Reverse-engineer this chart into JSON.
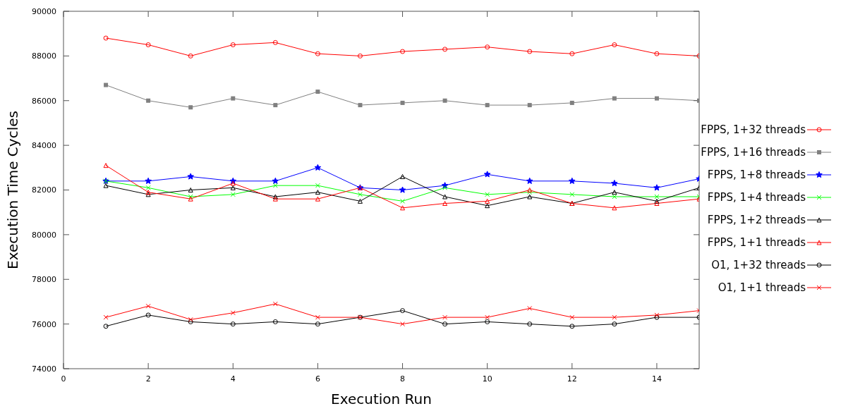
{
  "chart_data": {
    "type": "line",
    "xlabel": "Execution Run",
    "ylabel": "Execution Time Cycles",
    "x": [
      1,
      2,
      3,
      4,
      5,
      6,
      7,
      8,
      9,
      10,
      11,
      12,
      13,
      14,
      15
    ],
    "xlim": [
      0,
      15
    ],
    "xticks": [
      0,
      2,
      4,
      6,
      8,
      10,
      12,
      14
    ],
    "ylim": [
      74000,
      90000
    ],
    "yticks": [
      74000,
      76000,
      78000,
      80000,
      82000,
      84000,
      86000,
      88000,
      90000
    ],
    "grid": false,
    "legend": "right",
    "line_style": "solid",
    "series": [
      {
        "name": "FPPS, 1+32 threads",
        "color": "#ff0000",
        "marker": "circle",
        "values": [
          88800,
          88500,
          88000,
          88500,
          88600,
          88100,
          88000,
          88200,
          88300,
          88400,
          88200,
          88100,
          88500,
          88100,
          88000
        ]
      },
      {
        "name": "FPPS, 1+16 threads",
        "color": "#808080",
        "marker": "square",
        "values": [
          86700,
          86000,
          85700,
          86100,
          85800,
          86400,
          85800,
          85900,
          86000,
          85800,
          85800,
          85900,
          86100,
          86100,
          86000
        ]
      },
      {
        "name": "FPPS, 1+8 threads",
        "color": "#0000ff",
        "marker": "star",
        "values": [
          82400,
          82400,
          82600,
          82400,
          82400,
          83000,
          82100,
          82000,
          82200,
          82700,
          82400,
          82400,
          82300,
          82100,
          82500
        ]
      },
      {
        "name": "FPPS, 1+4 threads",
        "color": "#00ff00",
        "marker": "cross",
        "values": [
          82400,
          82100,
          81700,
          81800,
          82200,
          82200,
          81800,
          81500,
          82100,
          81800,
          81900,
          81800,
          81700,
          81700,
          81700
        ]
      },
      {
        "name": "FPPS, 1+2 threads",
        "color": "#000000",
        "marker": "triangle",
        "values": [
          82200,
          81800,
          82000,
          82100,
          81700,
          81900,
          81500,
          82600,
          81700,
          81300,
          81700,
          81400,
          81900,
          81500,
          82100
        ]
      },
      {
        "name": "FPPS, 1+1 threads",
        "color": "#ff0000",
        "marker": "triangle",
        "values": [
          83100,
          81900,
          81600,
          82300,
          81600,
          81600,
          82100,
          81200,
          81400,
          81500,
          82000,
          81400,
          81200,
          81400,
          81600
        ]
      },
      {
        "name": "O1, 1+32 threads",
        "color": "#000000",
        "marker": "circle",
        "values": [
          75900,
          76400,
          76100,
          76000,
          76100,
          76000,
          76300,
          76600,
          76000,
          76100,
          76000,
          75900,
          76000,
          76300,
          76300
        ]
      },
      {
        "name": "O1, 1+1 threads",
        "color": "#ff0000",
        "marker": "cross",
        "values": [
          76300,
          76800,
          76200,
          76500,
          76900,
          76300,
          76300,
          76000,
          76300,
          76300,
          76700,
          76300,
          76300,
          76400,
          76600
        ]
      }
    ]
  }
}
